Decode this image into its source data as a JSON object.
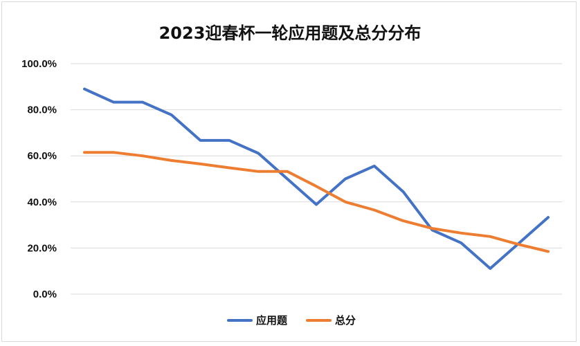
{
  "chart_data": {
    "type": "line",
    "title": "2023迎春杯一轮应用题及总分分布",
    "xlabel": "",
    "ylabel": "",
    "ylim": [
      0,
      100
    ],
    "yticks": [
      "0.0%",
      "20.0%",
      "40.0%",
      "60.0%",
      "80.0%",
      "100.0%"
    ],
    "grid": true,
    "legend_position": "bottom",
    "series": [
      {
        "name": "应用题",
        "color": "#4472C4",
        "values": [
          89.0,
          83.3,
          83.3,
          77.8,
          66.7,
          66.7,
          61.1,
          50.0,
          38.9,
          50.0,
          55.6,
          44.4,
          27.8,
          22.2,
          11.1,
          22.2,
          33.3
        ]
      },
      {
        "name": "总分",
        "color": "#ED7D31",
        "values": [
          61.5,
          61.5,
          60.0,
          58.0,
          56.5,
          54.8,
          53.2,
          53.2,
          46.8,
          40.0,
          36.5,
          31.8,
          28.5,
          26.5,
          25.0,
          21.5,
          18.5
        ]
      }
    ]
  }
}
